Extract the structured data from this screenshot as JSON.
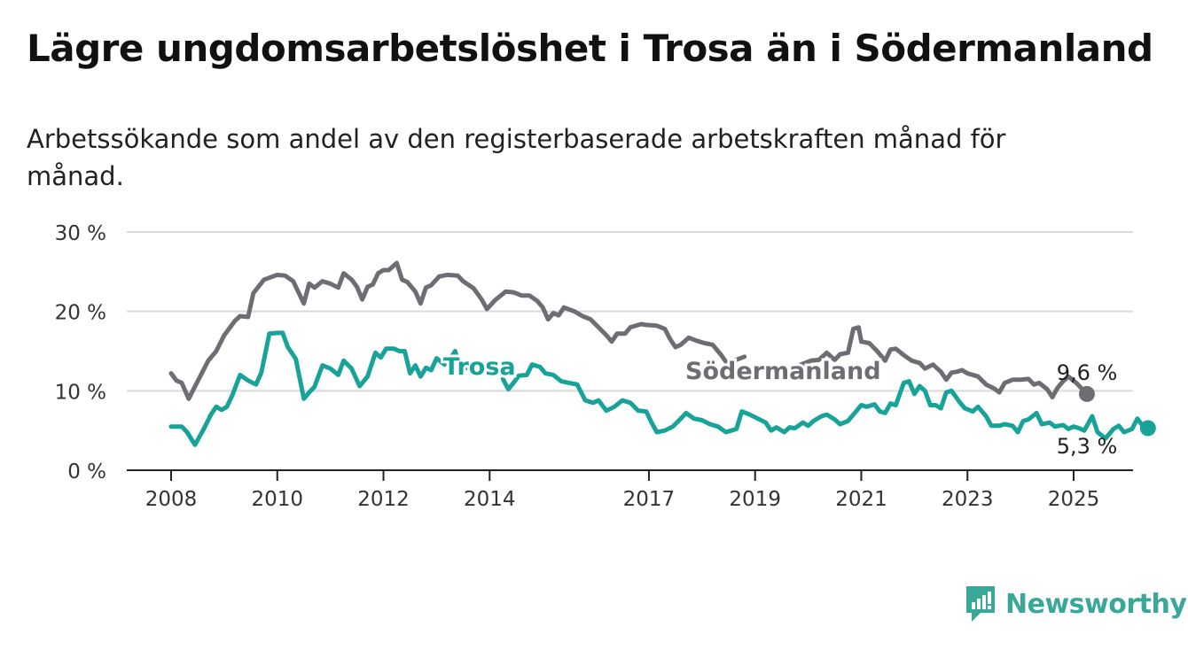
{
  "title": "Lägre ungdomsarbetslöshet i Trosa än i Södermanland",
  "subtitle": "Arbetssökande som andel av den registerbaserade arbetskraften månad för månad.",
  "brand": {
    "name": "Newsworthy",
    "icon": "newsworthy-logo-icon",
    "color": "#3aa899"
  },
  "colors": {
    "trosa": "#17a398",
    "sodermanland": "#6d6d73",
    "grid": "#d9d9d9",
    "axis": "#222222"
  },
  "chart_data": {
    "type": "line",
    "title": "Lägre ungdomsarbetslöshet i Trosa än i Södermanland",
    "xlabel": "",
    "ylabel": "",
    "xlim": [
      2007.4,
      2026.8
    ],
    "ylim": [
      0,
      30
    ],
    "grid": true,
    "x_ticks": [
      2008,
      2010,
      2012,
      2014,
      2017,
      2019,
      2021,
      2023,
      2025
    ],
    "x_tick_labels": [
      "2008",
      "2010",
      "2012",
      "2014",
      "2017",
      "2019",
      "2021",
      "2023",
      "2025"
    ],
    "y_ticks": [
      0,
      10,
      20,
      30
    ],
    "y_tick_labels": [
      "0 %",
      "10 %",
      "20 %",
      "30 %"
    ],
    "series": [
      {
        "name": "Södermanland",
        "color": "#6d6d73",
        "end_label": "9,6 %",
        "points": [
          [
            2008.0,
            12.2
          ],
          [
            2008.1,
            11.3
          ],
          [
            2008.2,
            11.0
          ],
          [
            2008.33,
            9.0
          ],
          [
            2008.5,
            11.2
          ],
          [
            2008.7,
            13.8
          ],
          [
            2008.85,
            15.0
          ],
          [
            2009.0,
            17.0
          ],
          [
            2009.2,
            18.8
          ],
          [
            2009.3,
            19.4
          ],
          [
            2009.45,
            19.3
          ],
          [
            2009.55,
            22.3
          ],
          [
            2009.75,
            24.0
          ],
          [
            2010.0,
            24.6
          ],
          [
            2010.15,
            24.5
          ],
          [
            2010.3,
            23.8
          ],
          [
            2010.5,
            21.0
          ],
          [
            2010.6,
            23.5
          ],
          [
            2010.7,
            23.0
          ],
          [
            2010.85,
            23.8
          ],
          [
            2011.0,
            23.5
          ],
          [
            2011.15,
            23.0
          ],
          [
            2011.25,
            24.8
          ],
          [
            2011.4,
            24.0
          ],
          [
            2011.5,
            23.1
          ],
          [
            2011.6,
            21.5
          ],
          [
            2011.7,
            23.1
          ],
          [
            2011.8,
            23.4
          ],
          [
            2011.9,
            24.8
          ],
          [
            2012.0,
            25.2
          ],
          [
            2012.1,
            25.2
          ],
          [
            2012.25,
            26.1
          ],
          [
            2012.35,
            24.0
          ],
          [
            2012.45,
            23.7
          ],
          [
            2012.6,
            22.5
          ],
          [
            2012.7,
            21.0
          ],
          [
            2012.8,
            23.0
          ],
          [
            2012.9,
            23.3
          ],
          [
            2013.05,
            24.4
          ],
          [
            2013.2,
            24.6
          ],
          [
            2013.4,
            24.5
          ],
          [
            2013.5,
            23.8
          ],
          [
            2013.7,
            22.9
          ],
          [
            2013.85,
            21.5
          ],
          [
            2013.95,
            20.3
          ],
          [
            2014.1,
            21.4
          ],
          [
            2014.3,
            22.5
          ],
          [
            2014.45,
            22.4
          ],
          [
            2014.6,
            22.0
          ],
          [
            2014.75,
            22.0
          ],
          [
            2014.9,
            21.3
          ],
          [
            2015.0,
            20.5
          ],
          [
            2015.1,
            19.0
          ],
          [
            2015.2,
            19.8
          ],
          [
            2015.3,
            19.5
          ],
          [
            2015.4,
            20.5
          ],
          [
            2015.6,
            20.0
          ],
          [
            2015.75,
            19.4
          ],
          [
            2015.9,
            19.0
          ],
          [
            2016.05,
            18.0
          ],
          [
            2016.2,
            17.0
          ],
          [
            2016.3,
            16.2
          ],
          [
            2016.4,
            17.2
          ],
          [
            2016.55,
            17.2
          ],
          [
            2016.65,
            18.0
          ],
          [
            2016.85,
            18.4
          ],
          [
            2016.95,
            18.3
          ],
          [
            2017.15,
            18.2
          ],
          [
            2017.3,
            17.8
          ],
          [
            2017.4,
            16.5
          ],
          [
            2017.5,
            15.5
          ],
          [
            2017.6,
            15.8
          ],
          [
            2017.75,
            16.7
          ],
          [
            2017.9,
            16.3
          ],
          [
            2018.05,
            16.0
          ],
          [
            2018.2,
            15.8
          ],
          [
            2018.35,
            14.6
          ],
          [
            2018.5,
            13.2
          ],
          [
            2018.6,
            13.8
          ],
          [
            2018.8,
            14.3
          ]
        ],
        "points_2": [
          [
            2021.0,
            16.2
          ],
          [
            2021.15,
            16.0
          ],
          [
            2021.3,
            15.0
          ],
          [
            2021.45,
            13.8
          ],
          [
            2021.55,
            15.2
          ],
          [
            2021.65,
            15.3
          ],
          [
            2021.8,
            14.5
          ],
          [
            2021.95,
            13.8
          ],
          [
            2022.1,
            13.5
          ],
          [
            2022.2,
            12.8
          ],
          [
            2022.35,
            13.3
          ],
          [
            2022.5,
            12.4
          ],
          [
            2022.6,
            11.4
          ],
          [
            2022.7,
            12.3
          ],
          [
            2022.8,
            12.4
          ],
          [
            2022.9,
            12.6
          ],
          [
            2023.0,
            12.2
          ],
          [
            2023.2,
            11.8
          ],
          [
            2023.35,
            10.8
          ],
          [
            2023.5,
            10.3
          ],
          [
            2023.6,
            9.8
          ],
          [
            2023.7,
            11.0
          ],
          [
            2023.85,
            11.4
          ],
          [
            2024.0,
            11.4
          ],
          [
            2024.15,
            11.5
          ],
          [
            2024.25,
            10.8
          ],
          [
            2024.35,
            11.0
          ],
          [
            2024.5,
            10.2
          ],
          [
            2024.6,
            9.2
          ],
          [
            2024.7,
            10.4
          ],
          [
            2024.8,
            11.2
          ],
          [
            2024.9,
            11.8
          ]
        ],
        "points_3": [
          [
            2019.3,
            11.5
          ],
          [
            2019.5,
            12.0
          ],
          [
            2019.7,
            12.8
          ],
          [
            2019.9,
            13.4
          ],
          [
            2020.05,
            13.8
          ],
          [
            2020.2,
            13.9
          ],
          [
            2020.35,
            14.8
          ],
          [
            2020.5,
            13.9
          ],
          [
            2020.6,
            14.6
          ],
          [
            2020.75,
            14.8
          ],
          [
            2020.85,
            17.8
          ],
          [
            2020.95,
            18.0
          ],
          [
            2021.0,
            16.2
          ]
        ],
        "points_4": [
          [
            2024.9,
            11.8
          ],
          [
            2025.05,
            11.0
          ],
          [
            2025.15,
            10.3
          ],
          [
            2025.25,
            9.6
          ]
        ],
        "end_point": [
          2025.25,
          9.6
        ]
      },
      {
        "name": "Trosa",
        "color": "#17a398",
        "end_label": "5,3 %",
        "points": [
          [
            2008.0,
            5.5
          ],
          [
            2008.1,
            5.5
          ],
          [
            2008.2,
            5.5
          ],
          [
            2008.3,
            4.8
          ],
          [
            2008.45,
            3.2
          ],
          [
            2008.6,
            5.0
          ],
          [
            2008.75,
            7.0
          ],
          [
            2008.85,
            8.0
          ],
          [
            2008.95,
            7.6
          ],
          [
            2009.05,
            8.0
          ],
          [
            2009.15,
            9.4
          ],
          [
            2009.3,
            12.0
          ],
          [
            2009.45,
            11.3
          ],
          [
            2009.6,
            10.8
          ],
          [
            2009.7,
            12.3
          ],
          [
            2009.85,
            17.2
          ],
          [
            2010.0,
            17.3
          ],
          [
            2010.1,
            17.3
          ],
          [
            2010.2,
            15.5
          ],
          [
            2010.35,
            14.0
          ],
          [
            2010.5,
            9.0
          ],
          [
            2010.6,
            9.8
          ],
          [
            2010.7,
            10.5
          ],
          [
            2010.85,
            13.2
          ],
          [
            2011.0,
            12.8
          ],
          [
            2011.15,
            12.0
          ],
          [
            2011.25,
            13.8
          ],
          [
            2011.4,
            12.8
          ],
          [
            2011.55,
            10.6
          ],
          [
            2011.7,
            11.8
          ],
          [
            2011.85,
            14.8
          ],
          [
            2011.95,
            14.2
          ],
          [
            2012.05,
            15.3
          ],
          [
            2012.2,
            15.3
          ],
          [
            2012.3,
            15.0
          ],
          [
            2012.4,
            15.0
          ],
          [
            2012.5,
            12.2
          ],
          [
            2012.6,
            13.2
          ],
          [
            2012.7,
            11.8
          ],
          [
            2012.8,
            12.9
          ],
          [
            2012.9,
            12.6
          ],
          [
            2013.0,
            14.1
          ],
          [
            2013.15,
            13.3
          ],
          [
            2013.25,
            14.0
          ],
          [
            2013.35,
            15.0
          ],
          [
            2013.45,
            12.5
          ],
          [
            2013.6,
            13.0
          ]
        ],
        "points_2": [
          [
            2014.25,
            11.5
          ],
          [
            2014.35,
            10.2
          ],
          [
            2014.45,
            11.0
          ],
          [
            2014.55,
            11.9
          ],
          [
            2014.7,
            12.0
          ],
          [
            2014.8,
            13.3
          ],
          [
            2014.95,
            13.0
          ],
          [
            2015.05,
            12.2
          ],
          [
            2015.2,
            12.0
          ],
          [
            2015.35,
            11.2
          ],
          [
            2015.5,
            11.0
          ],
          [
            2015.65,
            10.8
          ],
          [
            2015.8,
            8.8
          ],
          [
            2015.95,
            8.5
          ],
          [
            2016.05,
            8.8
          ],
          [
            2016.2,
            7.5
          ],
          [
            2016.35,
            8.0
          ],
          [
            2016.5,
            8.8
          ],
          [
            2016.65,
            8.5
          ],
          [
            2016.8,
            7.5
          ],
          [
            2016.95,
            7.4
          ],
          [
            2017.05,
            6.0
          ],
          [
            2017.15,
            4.8
          ],
          [
            2017.3,
            5.0
          ],
          [
            2017.45,
            5.5
          ],
          [
            2017.6,
            6.5
          ],
          [
            2017.7,
            7.2
          ],
          [
            2017.85,
            6.5
          ],
          [
            2018.0,
            6.3
          ],
          [
            2018.15,
            5.8
          ],
          [
            2018.3,
            5.5
          ],
          [
            2018.45,
            4.8
          ],
          [
            2018.55,
            5.0
          ],
          [
            2018.65,
            5.2
          ],
          [
            2018.75,
            7.4
          ],
          [
            2018.9,
            7.0
          ],
          [
            2019.05,
            6.5
          ],
          [
            2019.2,
            6.0
          ],
          [
            2019.3,
            5.0
          ],
          [
            2019.4,
            5.4
          ],
          [
            2019.55,
            4.8
          ],
          [
            2019.65,
            5.4
          ],
          [
            2019.75,
            5.3
          ],
          [
            2019.9,
            6.0
          ],
          [
            2020.0,
            5.6
          ],
          [
            2020.1,
            6.2
          ],
          [
            2020.25,
            6.8
          ],
          [
            2020.35,
            7.0
          ],
          [
            2020.5,
            6.4
          ],
          [
            2020.6,
            5.8
          ],
          [
            2020.75,
            6.2
          ],
          [
            2020.85,
            7.0
          ],
          [
            2021.0,
            8.2
          ],
          [
            2021.1,
            8.0
          ],
          [
            2021.25,
            8.3
          ],
          [
            2021.35,
            7.4
          ],
          [
            2021.45,
            7.2
          ],
          [
            2021.55,
            8.4
          ],
          [
            2021.65,
            8.2
          ],
          [
            2021.8,
            11.0
          ],
          [
            2021.9,
            11.2
          ],
          [
            2022.0,
            9.6
          ],
          [
            2022.1,
            10.6
          ],
          [
            2022.2,
            10.0
          ],
          [
            2022.3,
            8.2
          ],
          [
            2022.4,
            8.2
          ],
          [
            2022.5,
            7.8
          ],
          [
            2022.6,
            9.8
          ],
          [
            2022.7,
            10.0
          ],
          [
            2022.85,
            8.6
          ],
          [
            2022.95,
            7.8
          ],
          [
            2023.1,
            7.4
          ],
          [
            2023.2,
            8.0
          ],
          [
            2023.35,
            6.8
          ],
          [
            2023.45,
            5.6
          ],
          [
            2023.6,
            5.6
          ],
          [
            2023.7,
            5.8
          ],
          [
            2023.85,
            5.6
          ],
          [
            2023.95,
            4.8
          ],
          [
            2024.05,
            6.2
          ],
          [
            2024.15,
            6.4
          ],
          [
            2024.3,
            7.2
          ],
          [
            2024.4,
            5.8
          ],
          [
            2024.55,
            6.0
          ],
          [
            2024.65,
            5.5
          ],
          [
            2024.8,
            5.7
          ],
          [
            2024.9,
            5.2
          ],
          [
            2025.0,
            5.5
          ],
          [
            2025.1,
            5.3
          ],
          [
            2025.2,
            5.0
          ],
          [
            2025.35,
            6.8
          ],
          [
            2025.45,
            4.8
          ],
          [
            2025.6,
            4.0
          ],
          [
            2025.75,
            5.2
          ],
          [
            2025.85,
            5.6
          ],
          [
            2025.95,
            4.8
          ],
          [
            2026.1,
            5.2
          ],
          [
            2026.2,
            6.5
          ],
          [
            2026.3,
            5.6
          ],
          [
            2026.4,
            5.3
          ]
        ],
        "end_point": [
          2026.4,
          5.3
        ]
      }
    ]
  }
}
